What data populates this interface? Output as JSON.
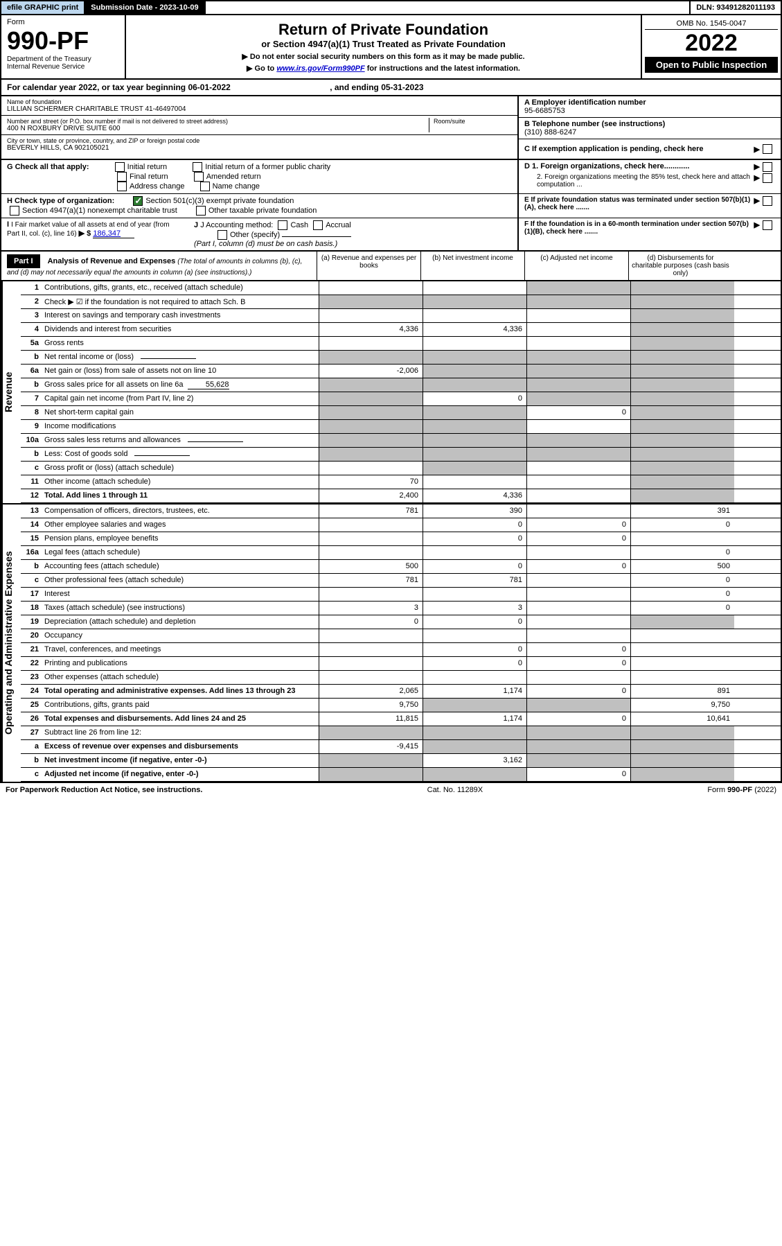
{
  "topbar": {
    "efile": "efile GRAPHIC print",
    "submit_label": "Submission Date - 2023-10-09",
    "dln": "DLN: 93491282011193"
  },
  "header": {
    "form_word": "Form",
    "form_num": "990-PF",
    "dept": "Department of the Treasury",
    "irs": "Internal Revenue Service",
    "title": "Return of Private Foundation",
    "subtitle": "or Section 4947(a)(1) Trust Treated as Private Foundation",
    "instr1": "▶ Do not enter social security numbers on this form as it may be made public.",
    "instr2_pre": "▶ Go to ",
    "instr2_link": "www.irs.gov/Form990PF",
    "instr2_post": " for instructions and the latest information.",
    "omb": "OMB No. 1545-0047",
    "year": "2022",
    "open_public": "Open to Public Inspection"
  },
  "cal_year": {
    "text_pre": "For calendar year 2022, or tax year beginning ",
    "begin": "06-01-2022",
    "text_mid": " , and ending ",
    "end": "05-31-2023"
  },
  "entity": {
    "name_label": "Name of foundation",
    "name": "LILLIAN SCHERMER CHARITABLE TRUST 41-46497004",
    "addr_label": "Number and street (or P.O. box number if mail is not delivered to street address)",
    "addr": "400 N ROXBURY DRIVE SUITE 600",
    "room_label": "Room/suite",
    "city_label": "City or town, state or province, country, and ZIP or foreign postal code",
    "city": "BEVERLY HILLS, CA  902105021",
    "ein_label": "A Employer identification number",
    "ein": "95-6685753",
    "phone_label": "B Telephone number (see instructions)",
    "phone": "(310) 888-6247",
    "c_label": "C If exemption application is pending, check here",
    "d1_label": "D 1. Foreign organizations, check here............",
    "d2_label": "2. Foreign organizations meeting the 85% test, check here and attach computation ...",
    "e_label": "E If private foundation status was terminated under section 507(b)(1)(A), check here .......",
    "f_label": "F If the foundation is in a 60-month termination under section 507(b)(1)(B), check here .......",
    "g_label": "G Check all that apply:",
    "g_opts": [
      "Initial return",
      "Initial return of a former public charity",
      "Final return",
      "Amended return",
      "Address change",
      "Name change"
    ],
    "h_label": "H Check type of organization:",
    "h1": "Section 501(c)(3) exempt private foundation",
    "h2": "Section 4947(a)(1) nonexempt charitable trust",
    "h3": "Other taxable private foundation",
    "i_label": "I Fair market value of all assets at end of year (from Part II, col. (c), line 16)",
    "i_val": "186,347",
    "j_label": "J Accounting method:",
    "j_cash": "Cash",
    "j_accrual": "Accrual",
    "j_other": "Other (specify)",
    "j_note": "(Part I, column (d) must be on cash basis.)"
  },
  "part1": {
    "label": "Part I",
    "title": "Analysis of Revenue and Expenses",
    "note": "(The total of amounts in columns (b), (c), and (d) may not necessarily equal the amounts in column (a) (see instructions).)",
    "col_a": "(a) Revenue and expenses per books",
    "col_b": "(b) Net investment income",
    "col_c": "(c) Adjusted net income",
    "col_d": "(d) Disbursements for charitable purposes (cash basis only)",
    "vert_revenue": "Revenue",
    "vert_expenses": "Operating and Administrative Expenses"
  },
  "rows": [
    {
      "n": "1",
      "label": "Contributions, gifts, grants, etc., received (attach schedule)",
      "a": "",
      "b": "",
      "c": "shaded",
      "d": "shaded"
    },
    {
      "n": "2",
      "label": "Check ▶ ☑ if the foundation is not required to attach Sch. B",
      "a": "shaded",
      "b": "shaded",
      "c": "shaded",
      "d": "shaded",
      "bold_not": true
    },
    {
      "n": "3",
      "label": "Interest on savings and temporary cash investments",
      "a": "",
      "b": "",
      "c": "",
      "d": "shaded"
    },
    {
      "n": "4",
      "label": "Dividends and interest from securities",
      "a": "4,336",
      "b": "4,336",
      "c": "",
      "d": "shaded"
    },
    {
      "n": "5a",
      "label": "Gross rents",
      "a": "",
      "b": "",
      "c": "",
      "d": "shaded"
    },
    {
      "n": "b",
      "label": "Net rental income or (loss)",
      "a": "shaded",
      "b": "shaded",
      "c": "shaded",
      "d": "shaded",
      "inline": true
    },
    {
      "n": "6a",
      "label": "Net gain or (loss) from sale of assets not on line 10",
      "a": "-2,006",
      "b": "shaded",
      "c": "shaded",
      "d": "shaded"
    },
    {
      "n": "b",
      "label": "Gross sales price for all assets on line 6a",
      "a": "shaded",
      "b": "shaded",
      "c": "shaded",
      "d": "shaded",
      "inline_val": "55,628"
    },
    {
      "n": "7",
      "label": "Capital gain net income (from Part IV, line 2)",
      "a": "shaded",
      "b": "0",
      "c": "shaded",
      "d": "shaded"
    },
    {
      "n": "8",
      "label": "Net short-term capital gain",
      "a": "shaded",
      "b": "shaded",
      "c": "0",
      "d": "shaded"
    },
    {
      "n": "9",
      "label": "Income modifications",
      "a": "shaded",
      "b": "shaded",
      "c": "",
      "d": "shaded"
    },
    {
      "n": "10a",
      "label": "Gross sales less returns and allowances",
      "a": "shaded",
      "b": "shaded",
      "c": "shaded",
      "d": "shaded",
      "inline": true
    },
    {
      "n": "b",
      "label": "Less: Cost of goods sold",
      "a": "shaded",
      "b": "shaded",
      "c": "shaded",
      "d": "shaded",
      "inline": true
    },
    {
      "n": "c",
      "label": "Gross profit or (loss) (attach schedule)",
      "a": "",
      "b": "shaded",
      "c": "",
      "d": "shaded"
    },
    {
      "n": "11",
      "label": "Other income (attach schedule)",
      "a": "70",
      "b": "",
      "c": "",
      "d": "shaded"
    },
    {
      "n": "12",
      "label": "Total. Add lines 1 through 11",
      "a": "2,400",
      "b": "4,336",
      "c": "",
      "d": "shaded",
      "bold": true
    }
  ],
  "exp_rows": [
    {
      "n": "13",
      "label": "Compensation of officers, directors, trustees, etc.",
      "a": "781",
      "b": "390",
      "c": "",
      "d": "391"
    },
    {
      "n": "14",
      "label": "Other employee salaries and wages",
      "a": "",
      "b": "0",
      "c": "0",
      "d": "0"
    },
    {
      "n": "15",
      "label": "Pension plans, employee benefits",
      "a": "",
      "b": "0",
      "c": "0",
      "d": ""
    },
    {
      "n": "16a",
      "label": "Legal fees (attach schedule)",
      "a": "",
      "b": "",
      "c": "",
      "d": "0"
    },
    {
      "n": "b",
      "label": "Accounting fees (attach schedule)",
      "a": "500",
      "b": "0",
      "c": "0",
      "d": "500"
    },
    {
      "n": "c",
      "label": "Other professional fees (attach schedule)",
      "a": "781",
      "b": "781",
      "c": "",
      "d": "0"
    },
    {
      "n": "17",
      "label": "Interest",
      "a": "",
      "b": "",
      "c": "",
      "d": "0"
    },
    {
      "n": "18",
      "label": "Taxes (attach schedule) (see instructions)",
      "a": "3",
      "b": "3",
      "c": "",
      "d": "0"
    },
    {
      "n": "19",
      "label": "Depreciation (attach schedule) and depletion",
      "a": "0",
      "b": "0",
      "c": "",
      "d": "shaded"
    },
    {
      "n": "20",
      "label": "Occupancy",
      "a": "",
      "b": "",
      "c": "",
      "d": ""
    },
    {
      "n": "21",
      "label": "Travel, conferences, and meetings",
      "a": "",
      "b": "0",
      "c": "0",
      "d": ""
    },
    {
      "n": "22",
      "label": "Printing and publications",
      "a": "",
      "b": "0",
      "c": "0",
      "d": ""
    },
    {
      "n": "23",
      "label": "Other expenses (attach schedule)",
      "a": "",
      "b": "",
      "c": "",
      "d": ""
    },
    {
      "n": "24",
      "label": "Total operating and administrative expenses. Add lines 13 through 23",
      "a": "2,065",
      "b": "1,174",
      "c": "0",
      "d": "891",
      "bold": true
    },
    {
      "n": "25",
      "label": "Contributions, gifts, grants paid",
      "a": "9,750",
      "b": "shaded",
      "c": "shaded",
      "d": "9,750"
    },
    {
      "n": "26",
      "label": "Total expenses and disbursements. Add lines 24 and 25",
      "a": "11,815",
      "b": "1,174",
      "c": "0",
      "d": "10,641",
      "bold": true
    },
    {
      "n": "27",
      "label": "Subtract line 26 from line 12:",
      "a": "shaded",
      "b": "shaded",
      "c": "shaded",
      "d": "shaded"
    },
    {
      "n": "a",
      "label": "Excess of revenue over expenses and disbursements",
      "a": "-9,415",
      "b": "shaded",
      "c": "shaded",
      "d": "shaded",
      "bold": true
    },
    {
      "n": "b",
      "label": "Net investment income (if negative, enter -0-)",
      "a": "shaded",
      "b": "3,162",
      "c": "shaded",
      "d": "shaded",
      "bold": true
    },
    {
      "n": "c",
      "label": "Adjusted net income (if negative, enter -0-)",
      "a": "shaded",
      "b": "shaded",
      "c": "0",
      "d": "shaded",
      "bold": true
    }
  ],
  "footer": {
    "left": "For Paperwork Reduction Act Notice, see instructions.",
    "mid": "Cat. No. 11289X",
    "right": "Form 990-PF (2022)"
  }
}
